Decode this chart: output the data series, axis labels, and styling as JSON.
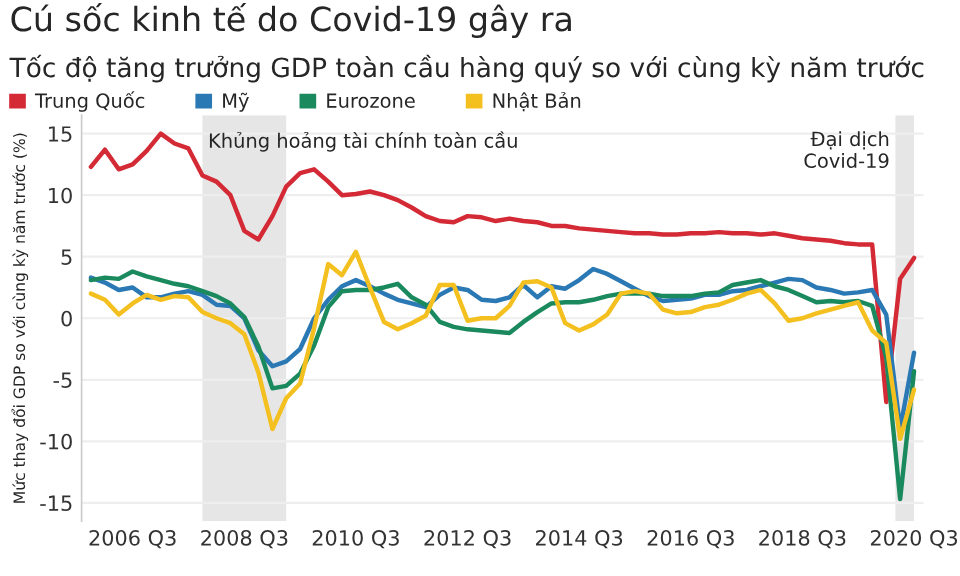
{
  "chart_data": {
    "type": "line",
    "title": "Cú sốc kinh tế do Covid-19 gây ra",
    "subtitle": "Tốc độ tăng trưởng GDP toàn cầu hàng quý so với cùng kỳ năm trước",
    "ylabel": "Mức thay đổi GDP so với cùng kỳ năm trước (%)",
    "x": [
      "2005-10",
      "2006-01",
      "2006-04",
      "2006-07",
      "2006-10",
      "2007-01",
      "2007-04",
      "2007-07",
      "2007-10",
      "2008-01",
      "2008-04",
      "2008-07",
      "2008-10",
      "2009-01",
      "2009-04",
      "2009-07",
      "2009-10",
      "2010-01",
      "2010-04",
      "2010-07",
      "2010-10",
      "2011-01",
      "2011-04",
      "2011-07",
      "2011-10",
      "2012-01",
      "2012-04",
      "2012-07",
      "2012-10",
      "2013-01",
      "2013-04",
      "2013-07",
      "2013-10",
      "2014-01",
      "2014-04",
      "2014-07",
      "2014-10",
      "2015-01",
      "2015-04",
      "2015-07",
      "2015-10",
      "2016-01",
      "2016-04",
      "2016-07",
      "2016-10",
      "2017-01",
      "2017-04",
      "2017-07",
      "2017-10",
      "2018-01",
      "2018-04",
      "2018-07",
      "2018-10",
      "2019-01",
      "2019-04",
      "2019-07",
      "2019-10",
      "2020-01",
      "2020-04",
      "2020-07"
    ],
    "series": [
      {
        "name": "Trung Quốc",
        "color": "#d42a35",
        "values": [
          12.3,
          13.7,
          12.1,
          12.5,
          13.6,
          15.0,
          14.2,
          13.8,
          11.6,
          11.1,
          10.0,
          7.1,
          6.4,
          8.3,
          10.7,
          11.8,
          12.1,
          11.1,
          10.0,
          10.1,
          10.3,
          10.0,
          9.6,
          9.0,
          8.3,
          7.9,
          7.8,
          8.3,
          8.2,
          7.9,
          8.1,
          7.9,
          7.8,
          7.5,
          7.5,
          7.3,
          7.2,
          7.1,
          7.0,
          6.9,
          6.9,
          6.8,
          6.8,
          6.9,
          6.9,
          7.0,
          6.9,
          6.9,
          6.8,
          6.9,
          6.7,
          6.5,
          6.4,
          6.3,
          6.1,
          6.0,
          6.0,
          -6.8,
          3.2,
          4.9
        ]
      },
      {
        "name": "Mỹ",
        "color": "#2a78b4",
        "values": [
          3.3,
          2.9,
          2.3,
          2.5,
          1.7,
          1.7,
          2.0,
          2.2,
          1.9,
          1.1,
          1.0,
          0.0,
          -2.6,
          -3.9,
          -3.5,
          -2.5,
          0.0,
          1.5,
          2.6,
          3.1,
          2.6,
          2.0,
          1.5,
          1.2,
          0.9,
          1.9,
          2.5,
          2.3,
          1.5,
          1.4,
          1.7,
          2.7,
          1.7,
          2.6,
          2.4,
          3.1,
          4.0,
          3.6,
          3.0,
          2.4,
          1.8,
          1.4,
          1.5,
          1.6,
          1.9,
          1.9,
          2.2,
          2.3,
          2.6,
          2.9,
          3.2,
          3.1,
          2.5,
          2.3,
          2.0,
          2.1,
          2.3,
          0.3,
          -9.0,
          -2.8
        ]
      },
      {
        "name": "Eurozone",
        "color": "#1a8a5e",
        "values": [
          3.1,
          3.3,
          3.2,
          3.8,
          3.4,
          3.1,
          2.8,
          2.6,
          2.2,
          1.8,
          1.2,
          0.1,
          -2.3,
          -5.7,
          -5.5,
          -4.5,
          -2.2,
          0.9,
          2.2,
          2.3,
          2.3,
          2.5,
          2.8,
          1.7,
          1.1,
          -0.3,
          -0.7,
          -0.9,
          -1.0,
          -1.1,
          -1.2,
          -0.3,
          0.5,
          1.2,
          1.3,
          1.3,
          1.5,
          1.8,
          2.0,
          2.0,
          2.0,
          1.8,
          1.8,
          1.8,
          2.0,
          2.1,
          2.7,
          2.9,
          3.1,
          2.6,
          2.3,
          1.8,
          1.3,
          1.4,
          1.3,
          1.4,
          1.0,
          -3.2,
          -14.7,
          -4.3
        ]
      },
      {
        "name": "Nhật Bản",
        "color": "#f4c020",
        "values": [
          2.0,
          1.5,
          0.3,
          1.2,
          1.9,
          1.5,
          1.8,
          1.7,
          0.5,
          0.0,
          -0.4,
          -1.3,
          -4.4,
          -9.0,
          -6.5,
          -5.3,
          -0.8,
          4.4,
          3.5,
          5.4,
          2.5,
          -0.3,
          -0.9,
          -0.4,
          0.2,
          2.7,
          2.7,
          -0.2,
          0.0,
          0.0,
          1.0,
          2.9,
          3.0,
          2.5,
          -0.4,
          -1.0,
          -0.5,
          0.3,
          2.0,
          2.2,
          2.0,
          0.7,
          0.4,
          0.5,
          0.9,
          1.1,
          1.5,
          2.0,
          2.3,
          1.2,
          -0.2,
          0.0,
          0.4,
          0.7,
          1.0,
          1.3,
          -1.0,
          -2.0,
          -9.8,
          -5.8
        ]
      }
    ],
    "xlim": [
      "2005-08",
      "2020-09"
    ],
    "xticks": [
      {
        "value": "2006-07",
        "label": "2006 Q3"
      },
      {
        "value": "2008-07",
        "label": "2008 Q3"
      },
      {
        "value": "2010-07",
        "label": "2010 Q3"
      },
      {
        "value": "2012-07",
        "label": "2012 Q3"
      },
      {
        "value": "2014-07",
        "label": "2014 Q3"
      },
      {
        "value": "2016-07",
        "label": "2016 Q3"
      },
      {
        "value": "2018-07",
        "label": "2018 Q3"
      },
      {
        "value": "2020-07",
        "label": "2020 Q3"
      }
    ],
    "ylim": [
      -16.5,
      16.5
    ],
    "yticks": [
      -15,
      -10,
      -5,
      0,
      5,
      10,
      15
    ],
    "bands": [
      {
        "axis": "x",
        "from": "2007-10",
        "to": "2009-04",
        "label": "Khủng hoảng tài chính toàn cầu",
        "color": "#e6e6e6"
      },
      {
        "axis": "x",
        "from": "2020-03",
        "to": "2020-07",
        "label": "Đại dịch\nCovid-19",
        "color": "#e6e6e6"
      }
    ],
    "grid": "y",
    "legend": "top left",
    "marker": "none"
  }
}
